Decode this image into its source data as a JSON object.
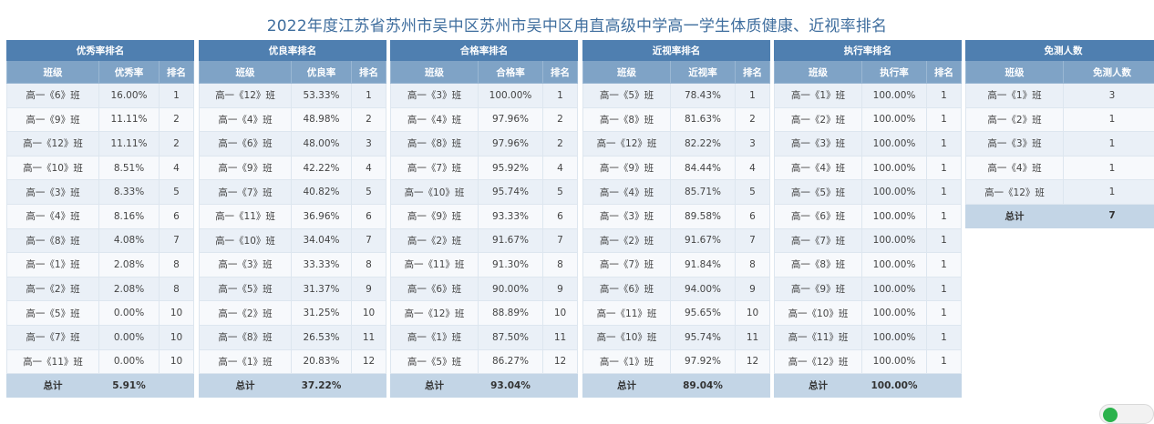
{
  "title": "2022年度江苏省苏州市吴中区苏州市吴中区甪直高级中学高一学生体质健康、近视率排名",
  "tables": [
    {
      "title": "优秀率排名",
      "headers": [
        "班级",
        "优秀率",
        "排名"
      ],
      "rows": [
        [
          "高一《6》班",
          "16.00%",
          "1"
        ],
        [
          "高一《9》班",
          "11.11%",
          "2"
        ],
        [
          "高一《12》班",
          "11.11%",
          "2"
        ],
        [
          "高一《10》班",
          "8.51%",
          "4"
        ],
        [
          "高一《3》班",
          "8.33%",
          "5"
        ],
        [
          "高一《4》班",
          "8.16%",
          "6"
        ],
        [
          "高一《8》班",
          "4.08%",
          "7"
        ],
        [
          "高一《1》班",
          "2.08%",
          "8"
        ],
        [
          "高一《2》班",
          "2.08%",
          "8"
        ],
        [
          "高一《5》班",
          "0.00%",
          "10"
        ],
        [
          "高一《7》班",
          "0.00%",
          "10"
        ],
        [
          "高一《11》班",
          "0.00%",
          "10"
        ]
      ],
      "footer": [
        "总计",
        "5.91%",
        ""
      ]
    },
    {
      "title": "优良率排名",
      "headers": [
        "班级",
        "优良率",
        "排名"
      ],
      "rows": [
        [
          "高一《12》班",
          "53.33%",
          "1"
        ],
        [
          "高一《4》班",
          "48.98%",
          "2"
        ],
        [
          "高一《6》班",
          "48.00%",
          "3"
        ],
        [
          "高一《9》班",
          "42.22%",
          "4"
        ],
        [
          "高一《7》班",
          "40.82%",
          "5"
        ],
        [
          "高一《11》班",
          "36.96%",
          "6"
        ],
        [
          "高一《10》班",
          "34.04%",
          "7"
        ],
        [
          "高一《3》班",
          "33.33%",
          "8"
        ],
        [
          "高一《5》班",
          "31.37%",
          "9"
        ],
        [
          "高一《2》班",
          "31.25%",
          "10"
        ],
        [
          "高一《8》班",
          "26.53%",
          "11"
        ],
        [
          "高一《1》班",
          "20.83%",
          "12"
        ]
      ],
      "footer": [
        "总计",
        "37.22%",
        ""
      ]
    },
    {
      "title": "合格率排名",
      "headers": [
        "班级",
        "合格率",
        "排名"
      ],
      "rows": [
        [
          "高一《3》班",
          "100.00%",
          "1"
        ],
        [
          "高一《4》班",
          "97.96%",
          "2"
        ],
        [
          "高一《8》班",
          "97.96%",
          "2"
        ],
        [
          "高一《7》班",
          "95.92%",
          "4"
        ],
        [
          "高一《10》班",
          "95.74%",
          "5"
        ],
        [
          "高一《9》班",
          "93.33%",
          "6"
        ],
        [
          "高一《2》班",
          "91.67%",
          "7"
        ],
        [
          "高一《11》班",
          "91.30%",
          "8"
        ],
        [
          "高一《6》班",
          "90.00%",
          "9"
        ],
        [
          "高一《12》班",
          "88.89%",
          "10"
        ],
        [
          "高一《1》班",
          "87.50%",
          "11"
        ],
        [
          "高一《5》班",
          "86.27%",
          "12"
        ]
      ],
      "footer": [
        "总计",
        "93.04%",
        ""
      ]
    },
    {
      "title": "近视率排名",
      "headers": [
        "班级",
        "近视率",
        "排名"
      ],
      "rows": [
        [
          "高一《5》班",
          "78.43%",
          "1"
        ],
        [
          "高一《8》班",
          "81.63%",
          "2"
        ],
        [
          "高一《12》班",
          "82.22%",
          "3"
        ],
        [
          "高一《9》班",
          "84.44%",
          "4"
        ],
        [
          "高一《4》班",
          "85.71%",
          "5"
        ],
        [
          "高一《3》班",
          "89.58%",
          "6"
        ],
        [
          "高一《2》班",
          "91.67%",
          "7"
        ],
        [
          "高一《7》班",
          "91.84%",
          "8"
        ],
        [
          "高一《6》班",
          "94.00%",
          "9"
        ],
        [
          "高一《11》班",
          "95.65%",
          "10"
        ],
        [
          "高一《10》班",
          "95.74%",
          "11"
        ],
        [
          "高一《1》班",
          "97.92%",
          "12"
        ]
      ],
      "footer": [
        "总计",
        "89.04%",
        ""
      ]
    },
    {
      "title": "执行率排名",
      "headers": [
        "班级",
        "执行率",
        "排名"
      ],
      "rows": [
        [
          "高一《1》班",
          "100.00%",
          "1"
        ],
        [
          "高一《2》班",
          "100.00%",
          "1"
        ],
        [
          "高一《3》班",
          "100.00%",
          "1"
        ],
        [
          "高一《4》班",
          "100.00%",
          "1"
        ],
        [
          "高一《5》班",
          "100.00%",
          "1"
        ],
        [
          "高一《6》班",
          "100.00%",
          "1"
        ],
        [
          "高一《7》班",
          "100.00%",
          "1"
        ],
        [
          "高一《8》班",
          "100.00%",
          "1"
        ],
        [
          "高一《9》班",
          "100.00%",
          "1"
        ],
        [
          "高一《10》班",
          "100.00%",
          "1"
        ],
        [
          "高一《11》班",
          "100.00%",
          "1"
        ],
        [
          "高一《12》班",
          "100.00%",
          "1"
        ]
      ],
      "footer": [
        "总计",
        "100.00%",
        ""
      ]
    },
    {
      "title": "免测人数",
      "headers": [
        "班级",
        "免测人数"
      ],
      "rows": [
        [
          "高一《1》班",
          "3"
        ],
        [
          "高一《2》班",
          "1"
        ],
        [
          "高一《3》班",
          "1"
        ],
        [
          "高一《4》班",
          "1"
        ],
        [
          "高一《12》班",
          "1"
        ]
      ],
      "footer": [
        "总计",
        "7"
      ]
    }
  ],
  "floating_button": {
    "label": "",
    "color": "#2bb24c"
  },
  "colors": {
    "title": "#3f6e9e",
    "group_header": "#4f7fb0",
    "column_header": "#7fa3c6",
    "total_row": "#c3d5e6",
    "row_odd": "#eaf0f7",
    "row_even": "#f7f9fc"
  }
}
